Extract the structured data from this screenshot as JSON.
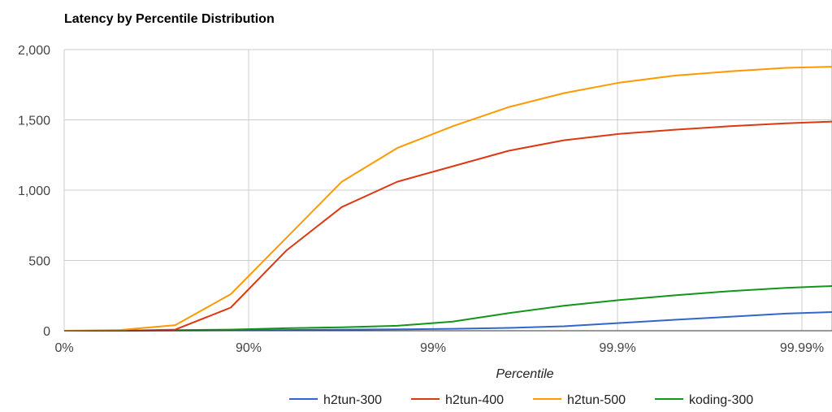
{
  "chart_data": {
    "type": "line",
    "title": "Latency by Percentile Distribution",
    "xlabel": "Percentile",
    "ylabel": "",
    "ylim": [
      0,
      2000
    ],
    "grid": true,
    "legend_position": "bottom",
    "x_axis_scale": "percentile-log (each tick = one more nine)",
    "x_ticks": [
      {
        "value": 0,
        "label": "0%"
      },
      {
        "value": 90,
        "label": "90%"
      },
      {
        "value": 99,
        "label": "99%"
      },
      {
        "value": 99.9,
        "label": "99.9%"
      },
      {
        "value": 99.99,
        "label": "99.99%"
      }
    ],
    "y_ticks": [
      {
        "value": 0,
        "label": "0"
      },
      {
        "value": 500,
        "label": "500"
      },
      {
        "value": 1000,
        "label": "1,000"
      },
      {
        "value": 1500,
        "label": "1,500"
      },
      {
        "value": 2000,
        "label": "2,000"
      }
    ],
    "x": [
      0,
      50,
      75,
      87.5,
      93.75,
      96.875,
      98.4375,
      99.21875,
      99.609375,
      99.8046875,
      99.90234375,
      99.951171875,
      99.9755859375,
      99.98779296875,
      99.993896484375
    ],
    "series": [
      {
        "name": "h2tun-300",
        "color": "#3366cc",
        "values": [
          0,
          0,
          2,
          3,
          5,
          8,
          10,
          14,
          20,
          32,
          55,
          78,
          100,
          122,
          135
        ]
      },
      {
        "name": "h2tun-400",
        "color": "#dc3912",
        "values": [
          0,
          0,
          8,
          165,
          570,
          880,
          1060,
          1170,
          1280,
          1355,
          1400,
          1430,
          1455,
          1475,
          1490
        ]
      },
      {
        "name": "h2tun-500",
        "color": "#ff9900",
        "values": [
          0,
          5,
          40,
          260,
          660,
          1060,
          1300,
          1455,
          1590,
          1690,
          1765,
          1815,
          1845,
          1870,
          1880
        ]
      },
      {
        "name": "koding-300",
        "color": "#109618",
        "values": [
          0,
          0,
          4,
          8,
          18,
          25,
          35,
          65,
          125,
          178,
          218,
          252,
          282,
          305,
          320
        ]
      }
    ]
  }
}
